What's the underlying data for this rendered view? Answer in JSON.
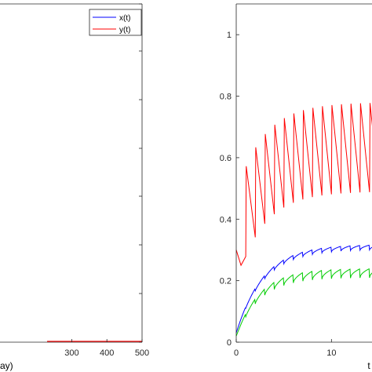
{
  "chart_data": [
    {
      "type": "line",
      "title": "",
      "xlabel": "ay)",
      "ylabel": "",
      "xlim": [
        0,
        500
      ],
      "x_ticks": [
        300,
        400,
        500
      ],
      "x_tick_labels": [
        "300",
        "400",
        "500"
      ],
      "grid": false,
      "legend_position": "top-right",
      "series": [
        {
          "name": "x(t)",
          "color": "#0000ff",
          "x": [],
          "y": []
        },
        {
          "name": "y(t)",
          "color": "#ff0000",
          "x": [
            230,
            500
          ],
          "y": [
            0,
            0
          ]
        }
      ]
    },
    {
      "type": "line",
      "title": "",
      "xlabel": "t",
      "ylabel": "",
      "xlim": [
        0,
        30
      ],
      "ylim": [
        0,
        1.1
      ],
      "x_ticks": [
        0,
        10,
        20
      ],
      "x_tick_labels": [
        "0",
        "10",
        "20"
      ],
      "y_ticks": [
        0,
        0.2,
        0.4,
        0.6,
        0.8,
        1
      ],
      "y_tick_labels": [
        "0",
        "0.2",
        "0.4",
        "0.6",
        "0.8",
        "1"
      ],
      "grid": false,
      "series": [
        {
          "color": "#ff0000",
          "description": "oscillating between ~0.49 and ~0.78, period ~1, starting at 0.30",
          "start": 0.3,
          "upper_envelope": {
            "initial": 0.48,
            "final": 0.78,
            "rate": 0.35
          },
          "lower_envelope": {
            "initial": 0.19,
            "final": 0.49,
            "rate": 0.35
          },
          "period": 1.0
        },
        {
          "color": "#0000ff",
          "start": 0.03,
          "final": 0.31,
          "rate": 0.35,
          "ripple": 0.008,
          "period": 1.0
        },
        {
          "color": "#00cc00",
          "start": 0.02,
          "final": 0.225,
          "rate": 0.4,
          "ripple": 0.015,
          "period": 1.0
        }
      ]
    }
  ]
}
